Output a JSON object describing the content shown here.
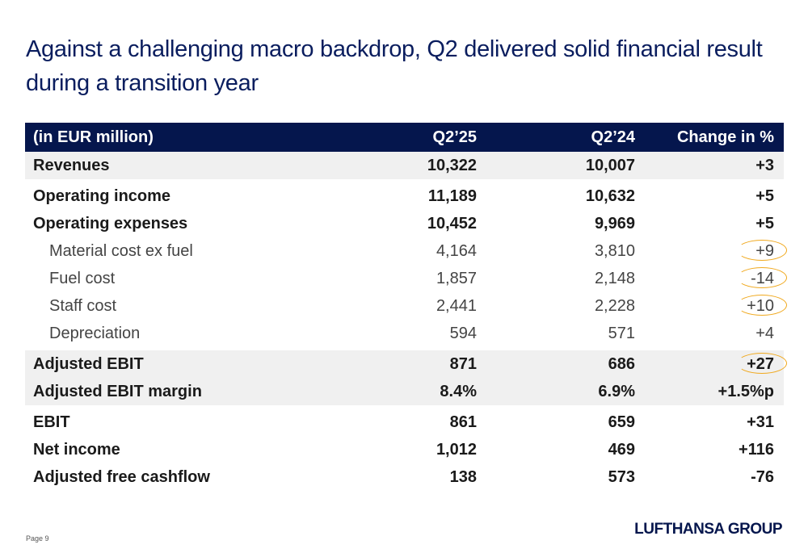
{
  "title": "Against a challenging macro backdrop, Q2 delivered solid financial result during a transition year",
  "table": {
    "header": {
      "label": "(in EUR million)",
      "col1": "Q2’25",
      "col2": "Q2’24",
      "col3": "Change in %"
    },
    "rows": [
      {
        "label": "Revenues",
        "v1": "10,322",
        "v2": "10,007",
        "v3": "+3"
      },
      {
        "label": "Operating income",
        "v1": "11,189",
        "v2": "10,632",
        "v3": "+5"
      },
      {
        "label": "Operating expenses",
        "v1": "10,452",
        "v2": "9,969",
        "v3": "+5"
      },
      {
        "label": "Material cost ex fuel",
        "v1": "4,164",
        "v2": "3,810",
        "v3": "+9"
      },
      {
        "label": "Fuel cost",
        "v1": "1,857",
        "v2": "2,148",
        "v3": "-14"
      },
      {
        "label": "Staff cost",
        "v1": "2,441",
        "v2": "2,228",
        "v3": "+10"
      },
      {
        "label": "Depreciation",
        "v1": "594",
        "v2": "571",
        "v3": "+4"
      },
      {
        "label": "Adjusted EBIT",
        "v1": "871",
        "v2": "686",
        "v3": "+27"
      },
      {
        "label": "Adjusted EBIT margin",
        "v1": "8.4%",
        "v2": "6.9%",
        "v3": "+1.5%p"
      },
      {
        "label": "EBIT",
        "v1": "861",
        "v2": "659",
        "v3": "+31"
      },
      {
        "label": "Net income",
        "v1": "1,012",
        "v2": "469",
        "v3": "+116"
      },
      {
        "label": "Adjusted free cashflow",
        "v1": "138",
        "v2": "573",
        "v3": "-76"
      }
    ]
  },
  "footer": {
    "page": "Page 9",
    "logo": "LUFTHANSA GROUP"
  },
  "colors": {
    "navy": "#05164d",
    "highlight": "#f0a81c",
    "shade": "#f0f0f0"
  }
}
